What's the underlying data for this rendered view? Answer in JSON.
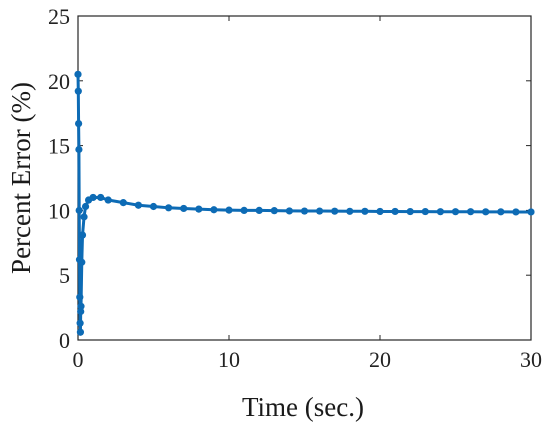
{
  "chart_data": {
    "type": "line",
    "title": "",
    "xlabel": "Time (sec.)",
    "ylabel": "Percent Error (%)",
    "xlim": [
      0,
      30
    ],
    "ylim": [
      0,
      25
    ],
    "xticks": [
      0,
      10,
      20,
      30
    ],
    "yticks": [
      0,
      5,
      10,
      15,
      20,
      25
    ],
    "grid": false,
    "legend": "none",
    "colors": {
      "series": "#0d6bb5",
      "axis": "#262626",
      "text": "#222222"
    },
    "series": [
      {
        "x": [
          0,
          0.02,
          0.04,
          0.06,
          0.08,
          0.1,
          0.12,
          0.14,
          0.16,
          0.18,
          0.2,
          0.25,
          0.3,
          0.4,
          0.5,
          0.7,
          1.0,
          1.5,
          2.0,
          3.0,
          4.0,
          5.0,
          6.0,
          7.0,
          8.0,
          9.0,
          10.0,
          11.0,
          12.0,
          13.0,
          14.0,
          15.0,
          16.0,
          17.0,
          18.0,
          19.0,
          20.0,
          21.0,
          22.0,
          23.0,
          24.0,
          25.0,
          26.0,
          27.0,
          28.0,
          29.0,
          30.0
        ],
        "y": [
          20.5,
          19.2,
          16.7,
          14.7,
          10.0,
          6.2,
          3.3,
          1.3,
          0.6,
          2.2,
          2.6,
          6.0,
          8.1,
          9.5,
          10.3,
          10.8,
          11.0,
          11.0,
          10.8,
          10.6,
          10.4,
          10.3,
          10.2,
          10.15,
          10.1,
          10.05,
          10.02,
          10.0,
          10.0,
          9.98,
          9.96,
          9.95,
          9.95,
          9.94,
          9.93,
          9.93,
          9.92,
          9.92,
          9.91,
          9.91,
          9.9,
          9.9,
          9.9,
          9.89,
          9.89,
          9.88,
          9.88
        ]
      }
    ]
  }
}
